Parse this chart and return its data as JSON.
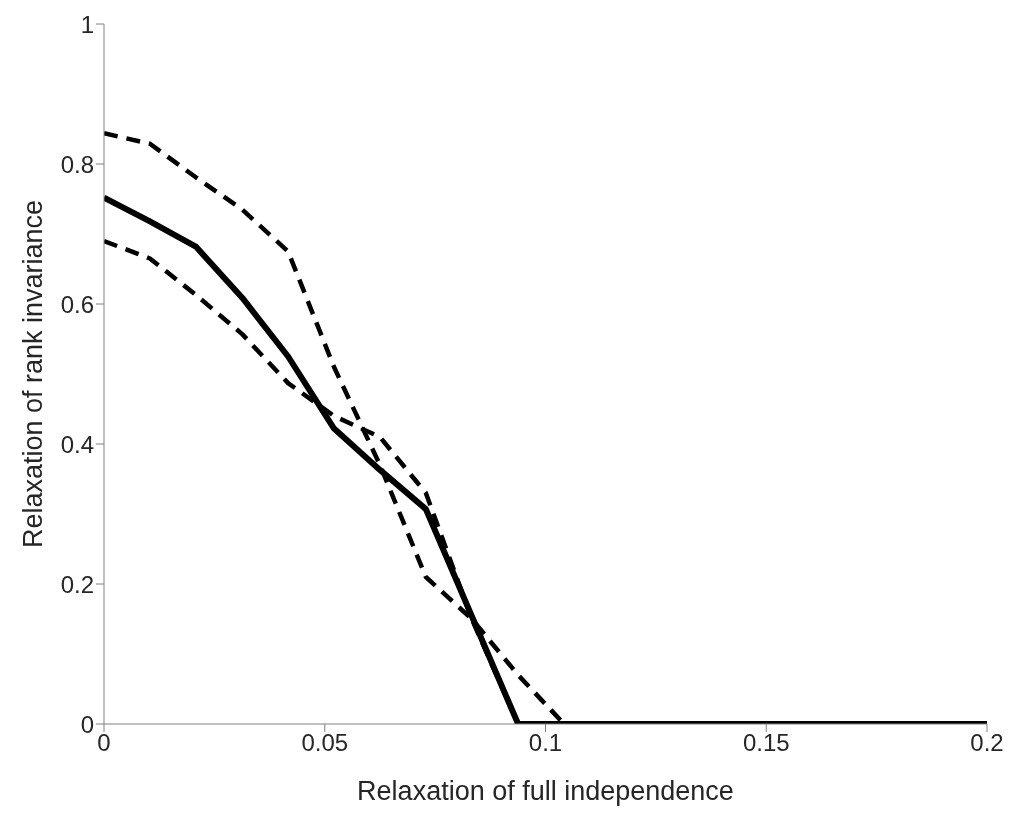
{
  "chart_data": {
    "type": "line",
    "xlabel": "Relaxation of full independence",
    "ylabel": "Relaxation of rank invariance",
    "xlim": [
      0,
      0.2
    ],
    "xticks": [
      0,
      0.05,
      0.1,
      0.15,
      0.2
    ],
    "ylim": [
      0,
      1
    ],
    "yticks": [
      0,
      0.2,
      0.4,
      0.6,
      0.8,
      1
    ],
    "grid": false,
    "legend": false,
    "marker": "none",
    "series": [
      {
        "color": "#000000",
        "line_style": "solid",
        "x": [
          0,
          0.0104,
          0.0208,
          0.0313,
          0.0417,
          0.0521,
          0.0625,
          0.0729,
          0.0938,
          0.2
        ],
        "values": [
          0.752,
          0.718,
          0.682,
          0.609,
          0.525,
          0.422,
          0.363,
          0.307,
          0,
          0
        ]
      },
      {
        "color": "#000000",
        "line_style": "dashed",
        "x": [
          0,
          0.0104,
          0.0208,
          0.0313,
          0.0417,
          0.0521,
          0.0625,
          0.0729,
          0.0833,
          0.0938,
          0.1042,
          0.2
        ],
        "values": [
          0.844,
          0.829,
          0.781,
          0.735,
          0.675,
          0.51,
          0.37,
          0.21,
          0.15,
          0.07,
          0,
          0
        ]
      },
      {
        "color": "#000000",
        "line_style": "dashed",
        "x": [
          0,
          0.0104,
          0.0208,
          0.0313,
          0.0417,
          0.0521,
          0.0625,
          0.0729,
          0.0833,
          0.0938,
          0.2
        ],
        "values": [
          0.69,
          0.665,
          0.613,
          0.557,
          0.487,
          0.44,
          0.41,
          0.33,
          0.15,
          0,
          0
        ]
      }
    ]
  }
}
